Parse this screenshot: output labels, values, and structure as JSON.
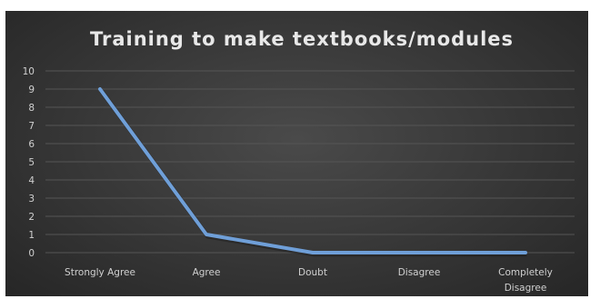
{
  "chart_data": {
    "type": "line",
    "title": "Training to make textbooks/modules",
    "categories": [
      "Strongly Agree",
      "Agree",
      "Doubt",
      "Disagree",
      "Completely Disagree"
    ],
    "series": [
      {
        "values": [
          9,
          1,
          0,
          0,
          0
        ]
      }
    ],
    "ylim": [
      0,
      10
    ],
    "yticks": [
      0,
      1,
      2,
      3,
      4,
      5,
      6,
      7,
      8,
      9,
      10
    ],
    "grid": true,
    "legend": "none",
    "colors": {
      "background": "#333333",
      "line": "#6f9fd8",
      "grid": "#555555",
      "text": "#d0d0d0",
      "title": "#e8e8e8"
    }
  }
}
